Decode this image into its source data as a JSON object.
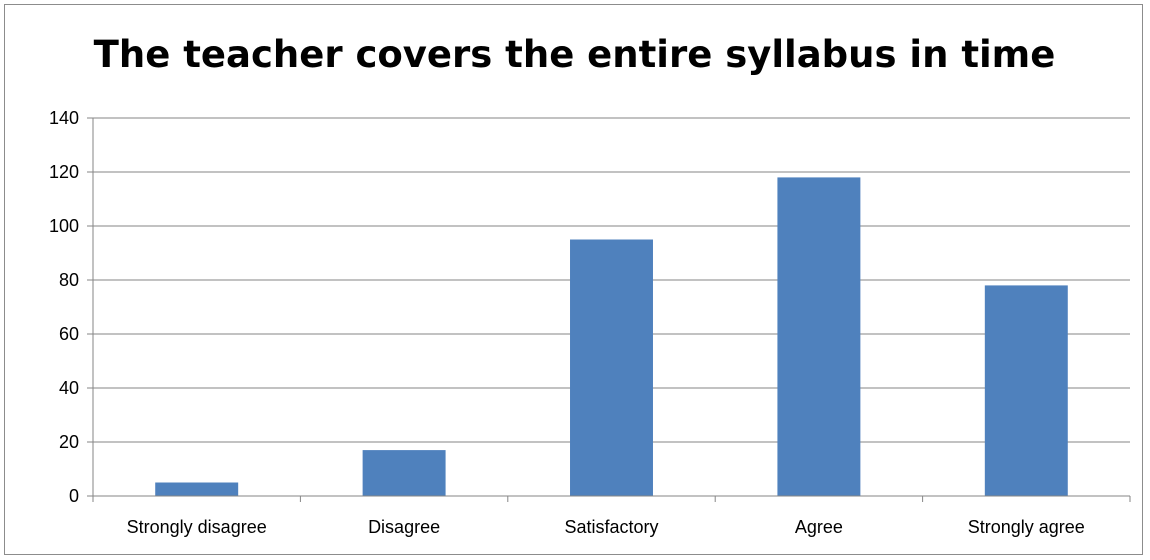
{
  "chart_data": {
    "type": "bar",
    "title": "The teacher covers the entire syllabus in time",
    "xlabel": "",
    "ylabel": "",
    "categories": [
      "Strongly disagree",
      "Disagree",
      "Satisfactory",
      "Agree",
      "Strongly agree"
    ],
    "values": [
      5,
      17,
      95,
      118,
      78
    ],
    "ylim": [
      0,
      140
    ],
    "yticks": [
      "0",
      "20",
      "40",
      "60",
      "80",
      "100",
      "120",
      "140"
    ],
    "grid": true,
    "legend": "none",
    "colors": {
      "bar": "#4f81bd",
      "grid": "#868686",
      "axis": "#868686"
    }
  }
}
